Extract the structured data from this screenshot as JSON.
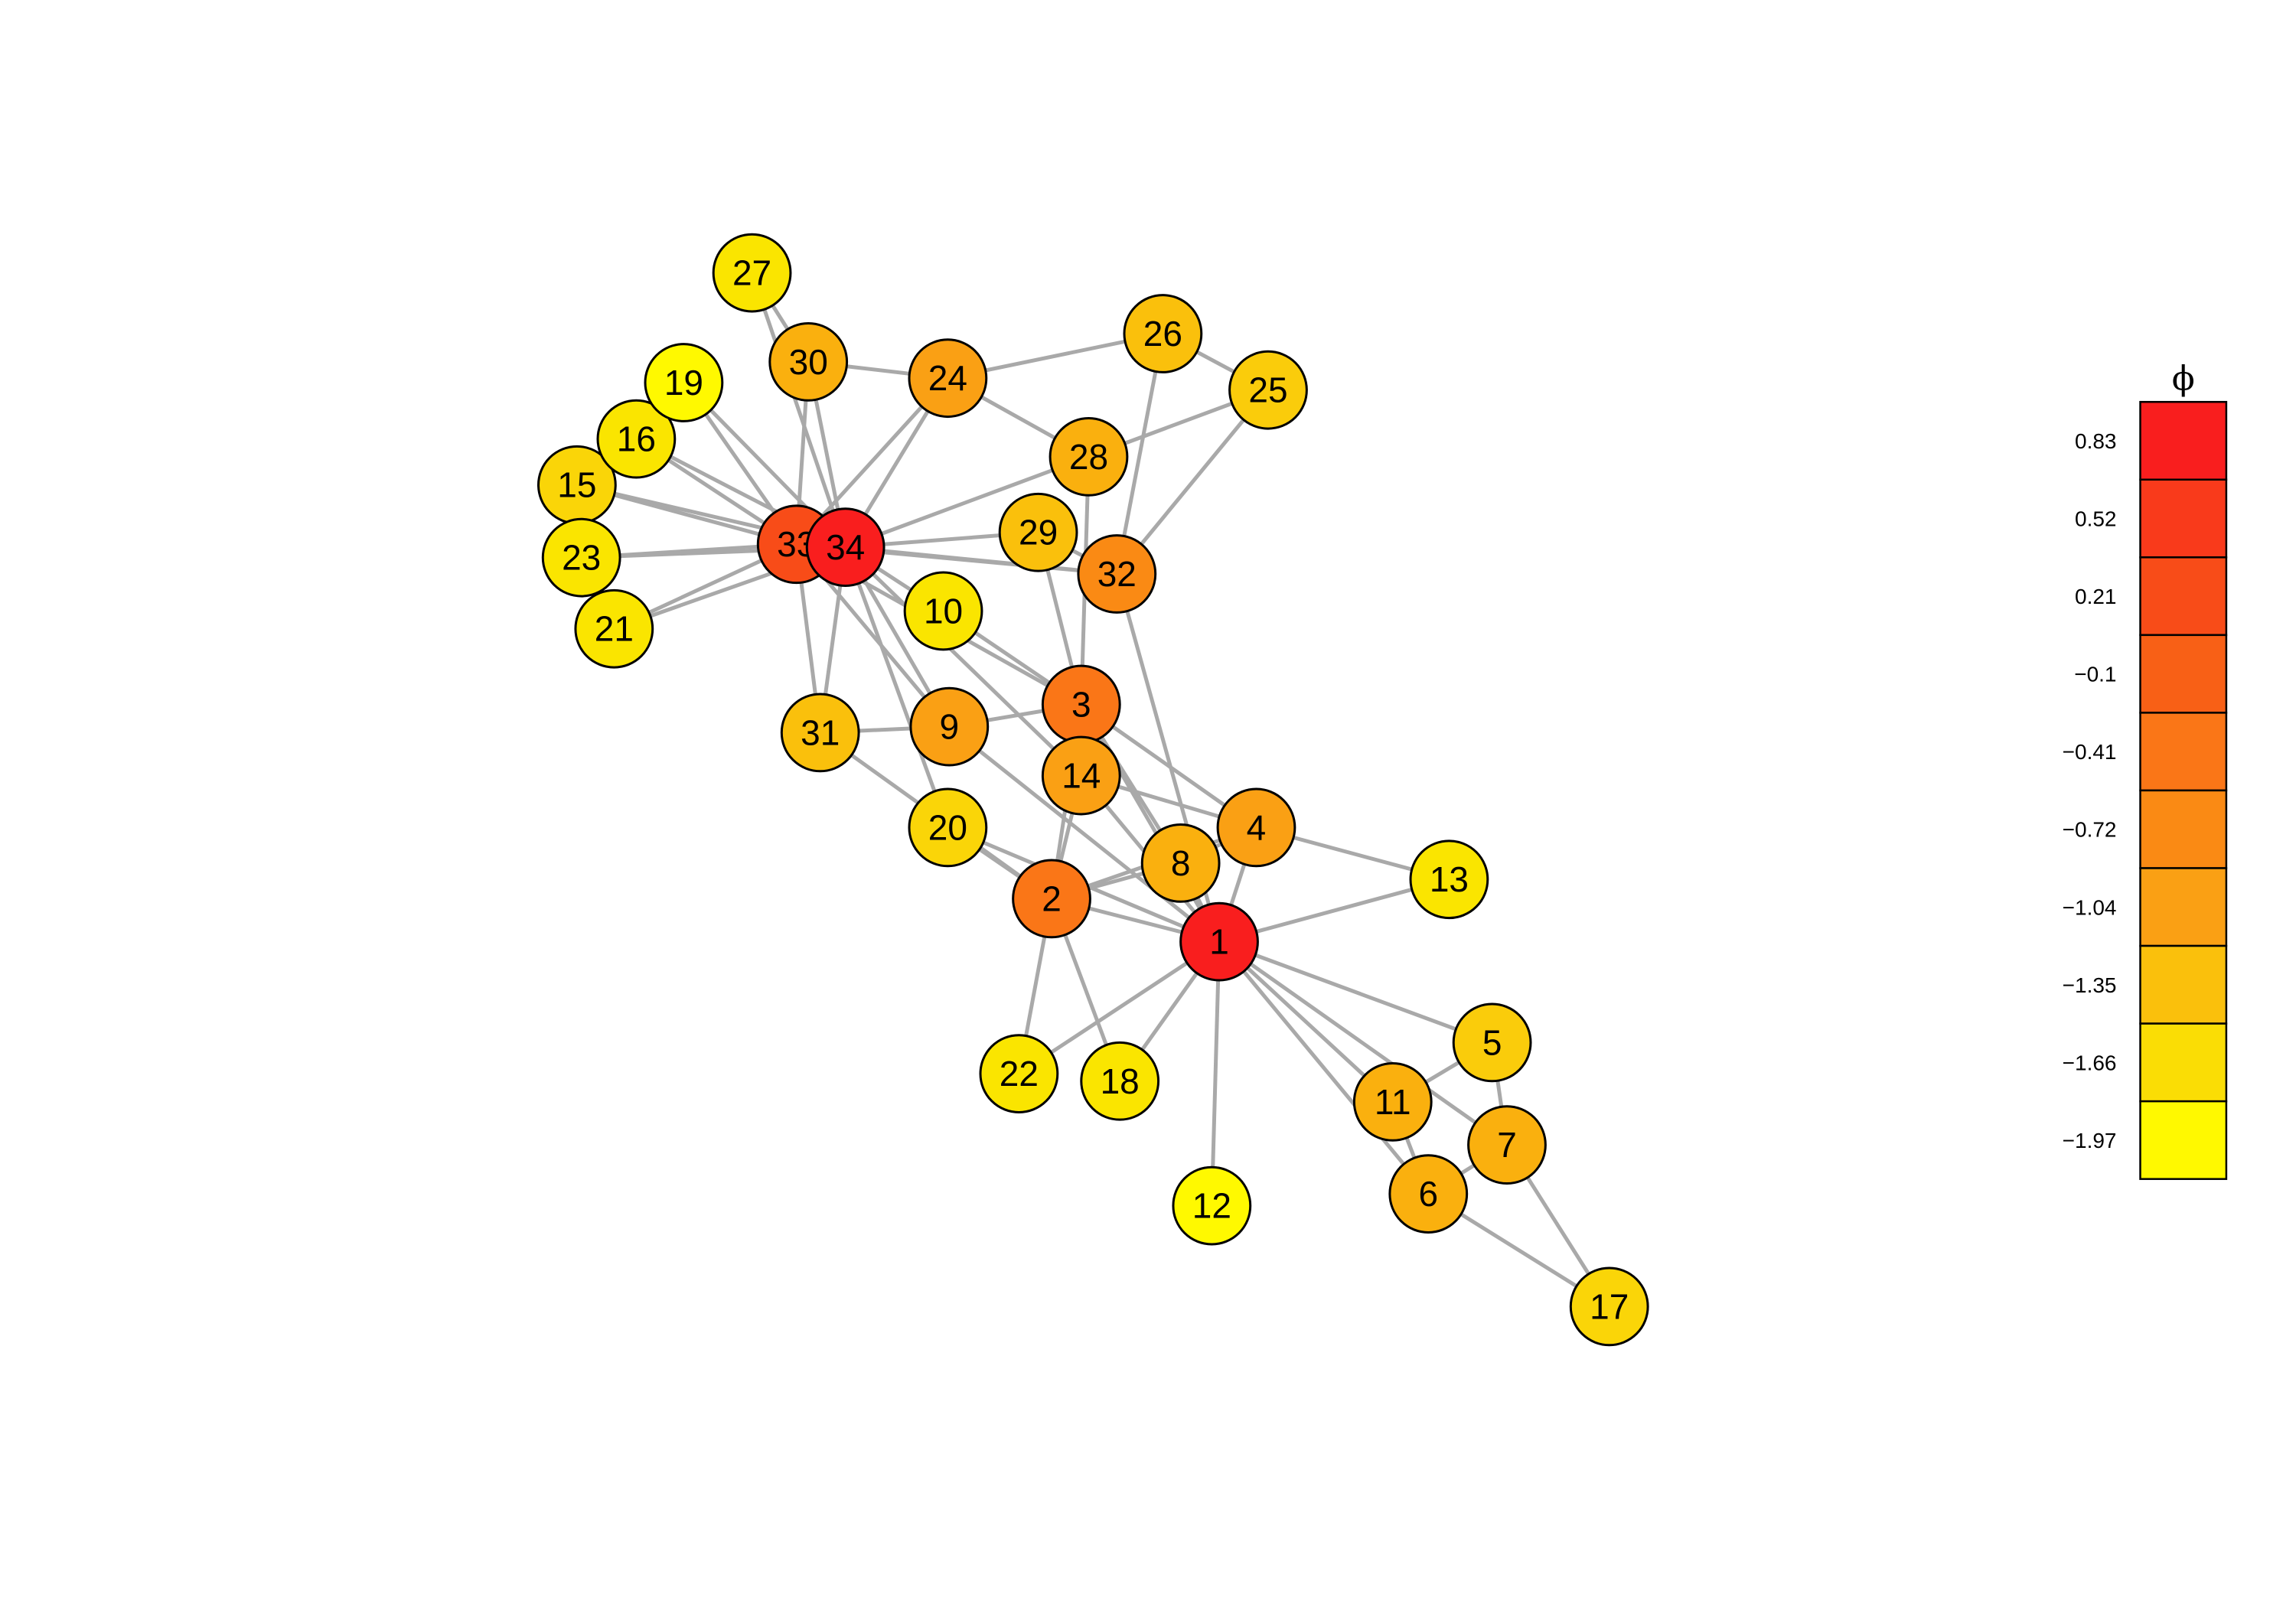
{
  "network": {
    "nodes": [
      {
        "id": "1",
        "color": "#F91E1E"
      },
      {
        "id": "2",
        "color": "#FA7617"
      },
      {
        "id": "3",
        "color": "#FA7617"
      },
      {
        "id": "4",
        "color": "#FAA014"
      },
      {
        "id": "5",
        "color": "#FACC0B"
      },
      {
        "id": "6",
        "color": "#FAB00E"
      },
      {
        "id": "7",
        "color": "#FAB00E"
      },
      {
        "id": "8",
        "color": "#FAB00E"
      },
      {
        "id": "9",
        "color": "#FAA014"
      },
      {
        "id": "10",
        "color": "#FAE500"
      },
      {
        "id": "11",
        "color": "#FAB00E"
      },
      {
        "id": "12",
        "color": "#FFF900"
      },
      {
        "id": "13",
        "color": "#FAE500"
      },
      {
        "id": "14",
        "color": "#FAA014"
      },
      {
        "id": "15",
        "color": "#FAD508"
      },
      {
        "id": "16",
        "color": "#FAE500"
      },
      {
        "id": "17",
        "color": "#FAD508"
      },
      {
        "id": "18",
        "color": "#FAE500"
      },
      {
        "id": "19",
        "color": "#FFF900"
      },
      {
        "id": "20",
        "color": "#FAD508"
      },
      {
        "id": "21",
        "color": "#FAE500"
      },
      {
        "id": "22",
        "color": "#FAE500"
      },
      {
        "id": "23",
        "color": "#FAE500"
      },
      {
        "id": "24",
        "color": "#FAA014"
      },
      {
        "id": "25",
        "color": "#FACC0B"
      },
      {
        "id": "26",
        "color": "#FAC00C"
      },
      {
        "id": "27",
        "color": "#FAE500"
      },
      {
        "id": "28",
        "color": "#FAB00E"
      },
      {
        "id": "29",
        "color": "#FAC00C"
      },
      {
        "id": "30",
        "color": "#FAB00E"
      },
      {
        "id": "31",
        "color": "#FAC00C"
      },
      {
        "id": "32",
        "color": "#FA8A14"
      },
      {
        "id": "33",
        "color": "#F84C18"
      },
      {
        "id": "34",
        "color": "#F91E1E"
      }
    ],
    "edges": [
      [
        "1",
        "2"
      ],
      [
        "1",
        "3"
      ],
      [
        "1",
        "4"
      ],
      [
        "1",
        "5"
      ],
      [
        "1",
        "6"
      ],
      [
        "1",
        "7"
      ],
      [
        "1",
        "8"
      ],
      [
        "1",
        "9"
      ],
      [
        "1",
        "11"
      ],
      [
        "1",
        "12"
      ],
      [
        "1",
        "13"
      ],
      [
        "1",
        "14"
      ],
      [
        "1",
        "18"
      ],
      [
        "1",
        "20"
      ],
      [
        "1",
        "22"
      ],
      [
        "1",
        "32"
      ],
      [
        "2",
        "3"
      ],
      [
        "2",
        "4"
      ],
      [
        "2",
        "8"
      ],
      [
        "2",
        "14"
      ],
      [
        "2",
        "18"
      ],
      [
        "2",
        "20"
      ],
      [
        "2",
        "22"
      ],
      [
        "2",
        "31"
      ],
      [
        "3",
        "4"
      ],
      [
        "3",
        "8"
      ],
      [
        "3",
        "9"
      ],
      [
        "3",
        "10"
      ],
      [
        "3",
        "14"
      ],
      [
        "3",
        "28"
      ],
      [
        "3",
        "29"
      ],
      [
        "3",
        "33"
      ],
      [
        "4",
        "8"
      ],
      [
        "4",
        "13"
      ],
      [
        "4",
        "14"
      ],
      [
        "5",
        "7"
      ],
      [
        "5",
        "11"
      ],
      [
        "6",
        "7"
      ],
      [
        "6",
        "11"
      ],
      [
        "6",
        "17"
      ],
      [
        "7",
        "17"
      ],
      [
        "9",
        "31"
      ],
      [
        "9",
        "33"
      ],
      [
        "9",
        "34"
      ],
      [
        "10",
        "34"
      ],
      [
        "14",
        "34"
      ],
      [
        "15",
        "33"
      ],
      [
        "15",
        "34"
      ],
      [
        "16",
        "33"
      ],
      [
        "16",
        "34"
      ],
      [
        "19",
        "33"
      ],
      [
        "19",
        "34"
      ],
      [
        "20",
        "34"
      ],
      [
        "21",
        "33"
      ],
      [
        "21",
        "34"
      ],
      [
        "23",
        "33"
      ],
      [
        "23",
        "34"
      ],
      [
        "24",
        "26"
      ],
      [
        "24",
        "28"
      ],
      [
        "24",
        "30"
      ],
      [
        "24",
        "33"
      ],
      [
        "24",
        "34"
      ],
      [
        "25",
        "26"
      ],
      [
        "25",
        "28"
      ],
      [
        "25",
        "32"
      ],
      [
        "26",
        "32"
      ],
      [
        "27",
        "30"
      ],
      [
        "27",
        "34"
      ],
      [
        "28",
        "34"
      ],
      [
        "29",
        "32"
      ],
      [
        "29",
        "34"
      ],
      [
        "30",
        "33"
      ],
      [
        "30",
        "34"
      ],
      [
        "31",
        "33"
      ],
      [
        "31",
        "34"
      ],
      [
        "32",
        "33"
      ],
      [
        "32",
        "34"
      ],
      [
        "33",
        "34"
      ]
    ],
    "edge_color": "#A9A9A9"
  },
  "legend": {
    "title": "ϕ",
    "bins": [
      {
        "label": "0.83",
        "color": "#F91E1E"
      },
      {
        "label": "0.52",
        "color": "#F93A1B"
      },
      {
        "label": "0.21",
        "color": "#F84C18"
      },
      {
        "label": "−0.1",
        "color": "#F86016"
      },
      {
        "label": "−0.41",
        "color": "#FA7617"
      },
      {
        "label": "−0.72",
        "color": "#FA8A14"
      },
      {
        "label": "−1.04",
        "color": "#FAA014"
      },
      {
        "label": "−1.35",
        "color": "#FAC00C"
      },
      {
        "label": "−1.66",
        "color": "#FADD05"
      },
      {
        "label": "−1.97",
        "color": "#FFF900"
      }
    ]
  }
}
